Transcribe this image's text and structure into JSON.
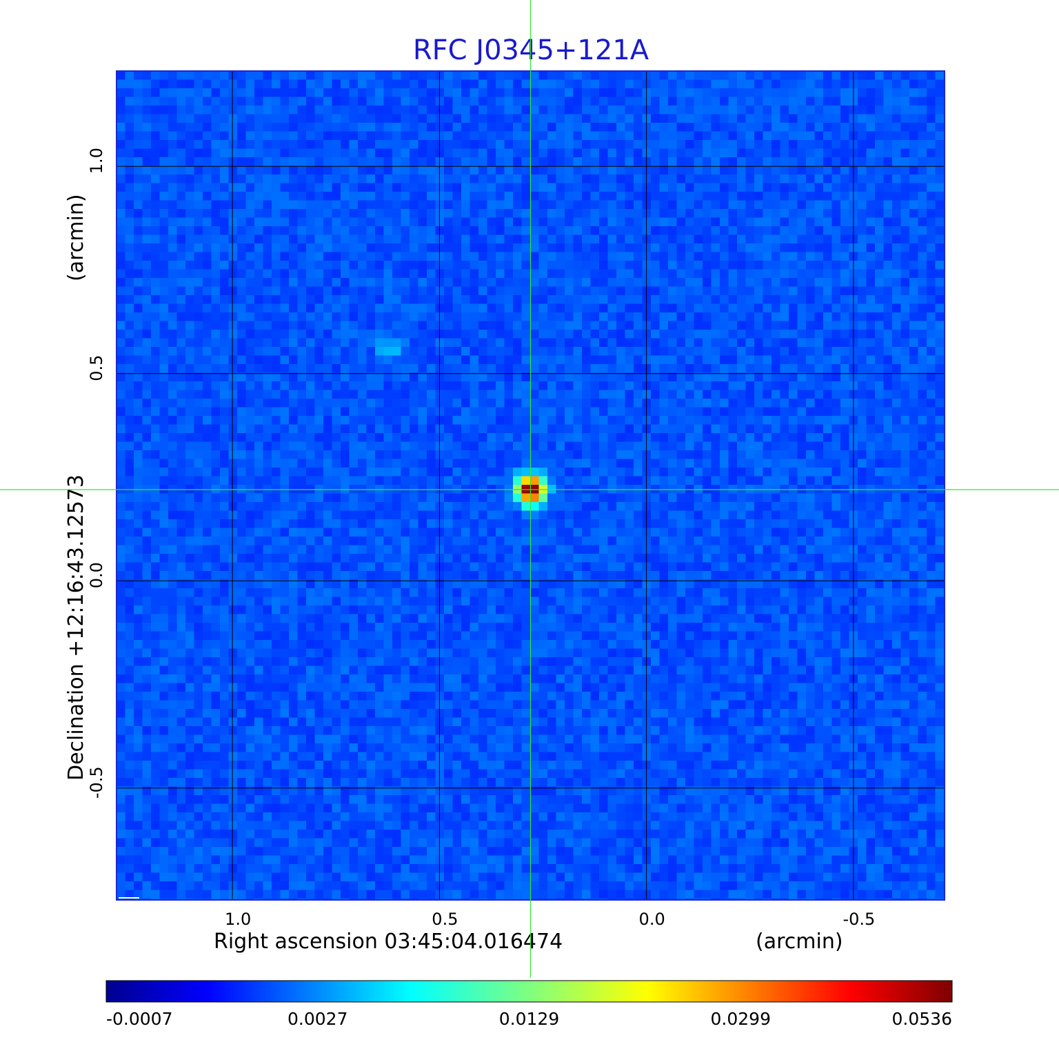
{
  "chart_data": {
    "type": "heatmap",
    "title": "RFC J0345+121A",
    "xlabel": "Right ascension  03:45:04.016474",
    "xunit": "(arcmin)",
    "ylabel": "Declination  +12:16:43.12573",
    "yunit": "(arcmin)",
    "xlim": [
      1.28,
      -0.72
    ],
    "ylim": [
      -0.77,
      1.23
    ],
    "x_ticks": [
      1.0,
      0.5,
      0.0,
      -0.5
    ],
    "x_tick_labels": [
      "1.0",
      "0.5",
      "0.0",
      "-0.5"
    ],
    "y_ticks": [
      1.0,
      0.5,
      0.0,
      -0.5
    ],
    "y_tick_labels": [
      "1.0",
      "0.5",
      "0.0",
      "-0.5"
    ],
    "grid": true,
    "crosshair": {
      "x": 0.28,
      "y": 0.22
    },
    "sources": [
      {
        "x": 0.28,
        "y": 0.22,
        "peak": 0.0536
      },
      {
        "x": 0.62,
        "y": 0.56,
        "peak": 0.004
      }
    ],
    "colorbar": {
      "tick_labels": [
        "-0.0007",
        "0.0027",
        "0.0129",
        "0.0299",
        "0.0536"
      ],
      "colormap": "jet"
    },
    "colors": {
      "background_field": "#1a3ff2",
      "grid": "#000000",
      "crosshair": "#32e832",
      "title": "#1a1acd"
    }
  }
}
